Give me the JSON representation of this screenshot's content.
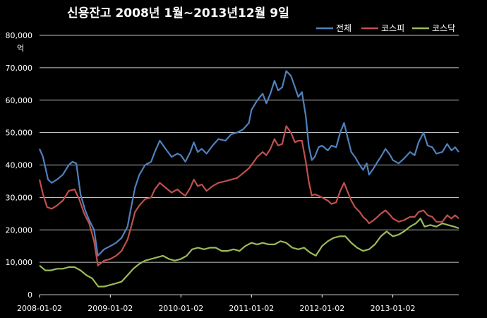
{
  "chart_data": {
    "type": "line",
    "title": "신용잔고 2008년 1월~2013년12월 9일",
    "ylabel": "억",
    "ylim": [
      0,
      80000
    ],
    "yticks": [
      0,
      10000,
      20000,
      30000,
      40000,
      50000,
      60000,
      70000,
      80000
    ],
    "ytick_labels": [
      "0",
      "10,000",
      "20,000",
      "30,000",
      "40,000",
      "50,000",
      "60,000",
      "70,000",
      "80,000"
    ],
    "xlim": [
      "2008-01-02",
      "2013-12-09"
    ],
    "xtick_labels": [
      "2008-01-02",
      "2009-01-02",
      "2010-01-02",
      "2011-01-02",
      "2012-01-02",
      "2013-01-02"
    ],
    "grid": true,
    "legend": "top-right",
    "colors": {
      "background": "#000000",
      "plot_background": "#000000",
      "grid": "#ffffff",
      "text": "#ffffff"
    },
    "series": [
      {
        "name": "전체",
        "color": "#4f81bd",
        "points": [
          [
            "2008-01-02",
            45000
          ],
          [
            "2008-01-20",
            42500
          ],
          [
            "2008-02-15",
            35500
          ],
          [
            "2008-03-05",
            34500
          ],
          [
            "2008-04-01",
            35500
          ],
          [
            "2008-05-01",
            37000
          ],
          [
            "2008-06-01",
            40000
          ],
          [
            "2008-06-20",
            41000
          ],
          [
            "2008-07-10",
            40500
          ],
          [
            "2008-08-01",
            31000
          ],
          [
            "2008-08-25",
            26000
          ],
          [
            "2008-09-15",
            23000
          ],
          [
            "2008-10-10",
            20000
          ],
          [
            "2008-10-30",
            12000
          ],
          [
            "2008-12-01",
            14000
          ],
          [
            "2009-01-02",
            15000
          ],
          [
            "2009-02-01",
            16000
          ],
          [
            "2009-03-01",
            17500
          ],
          [
            "2009-04-01",
            21000
          ],
          [
            "2009-04-20",
            27000
          ],
          [
            "2009-05-10",
            33000
          ],
          [
            "2009-06-01",
            37000
          ],
          [
            "2009-07-01",
            40000
          ],
          [
            "2009-08-01",
            41000
          ],
          [
            "2009-08-20",
            44000
          ],
          [
            "2009-09-15",
            47500
          ],
          [
            "2009-10-15",
            45000
          ],
          [
            "2009-11-15",
            42500
          ],
          [
            "2009-12-15",
            43500
          ],
          [
            "2010-01-02",
            43000
          ],
          [
            "2010-01-25",
            41000
          ],
          [
            "2010-02-20",
            44000
          ],
          [
            "2010-03-10",
            47000
          ],
          [
            "2010-03-30",
            44000
          ],
          [
            "2010-04-20",
            45000
          ],
          [
            "2010-05-15",
            43500
          ],
          [
            "2010-06-15",
            46000
          ],
          [
            "2010-07-15",
            48000
          ],
          [
            "2010-08-20",
            47500
          ],
          [
            "2010-09-20",
            49500
          ],
          [
            "2010-10-20",
            50000
          ],
          [
            "2010-11-20",
            51000
          ],
          [
            "2010-12-20",
            53000
          ],
          [
            "2011-01-02",
            57000
          ],
          [
            "2011-02-01",
            60000
          ],
          [
            "2011-03-01",
            62000
          ],
          [
            "2011-03-20",
            59000
          ],
          [
            "2011-04-10",
            62000
          ],
          [
            "2011-05-01",
            66000
          ],
          [
            "2011-05-20",
            63000
          ],
          [
            "2011-06-10",
            64000
          ],
          [
            "2011-07-01",
            69000
          ],
          [
            "2011-07-25",
            67500
          ],
          [
            "2011-08-15",
            64000
          ],
          [
            "2011-09-01",
            61000
          ],
          [
            "2011-09-20",
            62500
          ],
          [
            "2011-10-10",
            55000
          ],
          [
            "2011-10-25",
            46000
          ],
          [
            "2011-11-10",
            41500
          ],
          [
            "2011-11-25",
            42500
          ],
          [
            "2011-12-15",
            45500
          ],
          [
            "2012-01-02",
            46000
          ],
          [
            "2012-02-01",
            44500
          ],
          [
            "2012-02-20",
            46000
          ],
          [
            "2012-03-15",
            45500
          ],
          [
            "2012-04-05",
            50000
          ],
          [
            "2012-04-25",
            53000
          ],
          [
            "2012-05-15",
            48000
          ],
          [
            "2012-06-01",
            44000
          ],
          [
            "2012-06-20",
            42500
          ],
          [
            "2012-07-15",
            40000
          ],
          [
            "2012-08-01",
            38500
          ],
          [
            "2012-08-20",
            40500
          ],
          [
            "2012-09-01",
            37000
          ],
          [
            "2012-09-25",
            39000
          ],
          [
            "2012-10-15",
            41000
          ],
          [
            "2012-11-01",
            42500
          ],
          [
            "2012-11-25",
            45000
          ],
          [
            "2012-12-20",
            43000
          ],
          [
            "2013-01-02",
            41500
          ],
          [
            "2013-02-01",
            40500
          ],
          [
            "2013-03-01",
            42000
          ],
          [
            "2013-04-01",
            44000
          ],
          [
            "2013-04-25",
            43000
          ],
          [
            "2013-05-15",
            47000
          ],
          [
            "2013-06-10",
            50000
          ],
          [
            "2013-07-01",
            46000
          ],
          [
            "2013-07-25",
            45500
          ],
          [
            "2013-08-15",
            43500
          ],
          [
            "2013-09-15",
            44000
          ],
          [
            "2013-10-10",
            46500
          ],
          [
            "2013-11-01",
            44500
          ],
          [
            "2013-11-20",
            45500
          ],
          [
            "2013-12-09",
            44000
          ]
        ]
      },
      {
        "name": "코스피",
        "color": "#c0504d",
        "points": [
          [
            "2008-01-02",
            35500
          ],
          [
            "2008-01-20",
            31000
          ],
          [
            "2008-02-10",
            27000
          ],
          [
            "2008-03-05",
            26500
          ],
          [
            "2008-04-01",
            27500
          ],
          [
            "2008-05-01",
            29000
          ],
          [
            "2008-06-01",
            32000
          ],
          [
            "2008-07-01",
            32500
          ],
          [
            "2008-07-25",
            29500
          ],
          [
            "2008-08-20",
            25000
          ],
          [
            "2008-09-15",
            22000
          ],
          [
            "2008-10-10",
            16500
          ],
          [
            "2008-10-30",
            9000
          ],
          [
            "2008-12-01",
            10500
          ],
          [
            "2009-01-02",
            11000
          ],
          [
            "2009-02-01",
            12000
          ],
          [
            "2009-03-01",
            13500
          ],
          [
            "2009-04-01",
            17000
          ],
          [
            "2009-04-20",
            21000
          ],
          [
            "2009-05-10",
            25500
          ],
          [
            "2009-06-01",
            27500
          ],
          [
            "2009-07-01",
            29500
          ],
          [
            "2009-08-01",
            30000
          ],
          [
            "2009-08-20",
            32500
          ],
          [
            "2009-09-15",
            34500
          ],
          [
            "2009-10-15",
            33000
          ],
          [
            "2009-11-15",
            31500
          ],
          [
            "2009-12-15",
            32500
          ],
          [
            "2010-01-02",
            31500
          ],
          [
            "2010-01-25",
            30500
          ],
          [
            "2010-02-20",
            33000
          ],
          [
            "2010-03-10",
            35500
          ],
          [
            "2010-03-30",
            33500
          ],
          [
            "2010-04-20",
            34000
          ],
          [
            "2010-05-15",
            32000
          ],
          [
            "2010-06-15",
            33500
          ],
          [
            "2010-07-15",
            34500
          ],
          [
            "2010-08-20",
            35000
          ],
          [
            "2010-09-20",
            35500
          ],
          [
            "2010-10-20",
            36000
          ],
          [
            "2010-11-20",
            37500
          ],
          [
            "2010-12-20",
            39000
          ],
          [
            "2011-01-02",
            40000
          ],
          [
            "2011-02-01",
            42500
          ],
          [
            "2011-03-01",
            44000
          ],
          [
            "2011-03-20",
            43000
          ],
          [
            "2011-04-10",
            45000
          ],
          [
            "2011-05-01",
            48000
          ],
          [
            "2011-05-20",
            46000
          ],
          [
            "2011-06-10",
            46500
          ],
          [
            "2011-07-01",
            52000
          ],
          [
            "2011-07-25",
            50000
          ],
          [
            "2011-08-15",
            47000
          ],
          [
            "2011-09-01",
            47500
          ],
          [
            "2011-09-20",
            47500
          ],
          [
            "2011-10-10",
            41000
          ],
          [
            "2011-10-25",
            35000
          ],
          [
            "2011-11-10",
            30500
          ],
          [
            "2011-11-25",
            31000
          ],
          [
            "2011-12-15",
            30500
          ],
          [
            "2012-01-02",
            30000
          ],
          [
            "2012-02-01",
            29000
          ],
          [
            "2012-02-20",
            28000
          ],
          [
            "2012-03-15",
            28500
          ],
          [
            "2012-04-05",
            32000
          ],
          [
            "2012-04-25",
            34500
          ],
          [
            "2012-05-15",
            31500
          ],
          [
            "2012-06-01",
            29000
          ],
          [
            "2012-06-20",
            27000
          ],
          [
            "2012-07-15",
            25500
          ],
          [
            "2012-08-01",
            24000
          ],
          [
            "2012-08-20",
            23000
          ],
          [
            "2012-09-01",
            22000
          ],
          [
            "2012-09-25",
            23000
          ],
          [
            "2012-10-15",
            24000
          ],
          [
            "2012-11-01",
            25000
          ],
          [
            "2012-11-25",
            26000
          ],
          [
            "2012-12-20",
            24500
          ],
          [
            "2013-01-02",
            23500
          ],
          [
            "2013-02-01",
            22500
          ],
          [
            "2013-03-01",
            23000
          ],
          [
            "2013-04-01",
            24000
          ],
          [
            "2013-04-25",
            24000
          ],
          [
            "2013-05-15",
            25500
          ],
          [
            "2013-06-10",
            26000
          ],
          [
            "2013-07-01",
            24500
          ],
          [
            "2013-07-25",
            24000
          ],
          [
            "2013-08-15",
            22500
          ],
          [
            "2013-09-15",
            22500
          ],
          [
            "2013-10-10",
            24500
          ],
          [
            "2013-11-01",
            23500
          ],
          [
            "2013-11-20",
            24500
          ],
          [
            "2013-12-09",
            23500
          ]
        ]
      },
      {
        "name": "코스닥",
        "color": "#9bbb59",
        "points": [
          [
            "2008-01-02",
            9000
          ],
          [
            "2008-02-01",
            7500
          ],
          [
            "2008-03-01",
            7500
          ],
          [
            "2008-04-01",
            8000
          ],
          [
            "2008-05-01",
            8000
          ],
          [
            "2008-06-01",
            8500
          ],
          [
            "2008-07-01",
            8500
          ],
          [
            "2008-08-01",
            7500
          ],
          [
            "2008-09-01",
            6000
          ],
          [
            "2008-10-01",
            5000
          ],
          [
            "2008-11-01",
            2500
          ],
          [
            "2008-12-01",
            2500
          ],
          [
            "2009-01-02",
            3000
          ],
          [
            "2009-02-01",
            3500
          ],
          [
            "2009-03-01",
            4000
          ],
          [
            "2009-04-01",
            6000
          ],
          [
            "2009-05-01",
            8000
          ],
          [
            "2009-06-01",
            9500
          ],
          [
            "2009-07-01",
            10500
          ],
          [
            "2009-08-01",
            11000
          ],
          [
            "2009-09-01",
            11500
          ],
          [
            "2009-10-01",
            12000
          ],
          [
            "2009-11-01",
            11000
          ],
          [
            "2009-12-01",
            10500
          ],
          [
            "2010-01-02",
            11000
          ],
          [
            "2010-02-01",
            12000
          ],
          [
            "2010-03-01",
            14000
          ],
          [
            "2010-04-01",
            14500
          ],
          [
            "2010-05-01",
            14000
          ],
          [
            "2010-06-01",
            14500
          ],
          [
            "2010-07-01",
            14500
          ],
          [
            "2010-08-01",
            13500
          ],
          [
            "2010-09-01",
            13500
          ],
          [
            "2010-10-01",
            14000
          ],
          [
            "2010-11-01",
            13500
          ],
          [
            "2010-12-01",
            15000
          ],
          [
            "2011-01-02",
            16000
          ],
          [
            "2011-02-01",
            15500
          ],
          [
            "2011-03-01",
            16000
          ],
          [
            "2011-04-01",
            15500
          ],
          [
            "2011-05-01",
            15500
          ],
          [
            "2011-06-01",
            16500
          ],
          [
            "2011-07-01",
            16000
          ],
          [
            "2011-08-01",
            14500
          ],
          [
            "2011-09-01",
            14000
          ],
          [
            "2011-10-01",
            14500
          ],
          [
            "2011-11-01",
            13000
          ],
          [
            "2011-12-01",
            12000
          ],
          [
            "2012-01-02",
            15000
          ],
          [
            "2012-02-01",
            16500
          ],
          [
            "2012-03-01",
            17500
          ],
          [
            "2012-04-01",
            18000
          ],
          [
            "2012-05-01",
            18000
          ],
          [
            "2012-06-01",
            16000
          ],
          [
            "2012-07-01",
            14500
          ],
          [
            "2012-08-01",
            13500
          ],
          [
            "2012-09-01",
            14000
          ],
          [
            "2012-10-01",
            15500
          ],
          [
            "2012-11-01",
            18000
          ],
          [
            "2012-12-01",
            19500
          ],
          [
            "2013-01-02",
            18000
          ],
          [
            "2013-02-01",
            18500
          ],
          [
            "2013-03-01",
            19500
          ],
          [
            "2013-04-01",
            21000
          ],
          [
            "2013-05-01",
            22000
          ],
          [
            "2013-05-25",
            23500
          ],
          [
            "2013-06-15",
            21000
          ],
          [
            "2013-07-15",
            21500
          ],
          [
            "2013-08-15",
            21000
          ],
          [
            "2013-09-15",
            22000
          ],
          [
            "2013-10-15",
            21500
          ],
          [
            "2013-11-15",
            21000
          ],
          [
            "2013-12-09",
            20500
          ]
        ]
      }
    ]
  }
}
